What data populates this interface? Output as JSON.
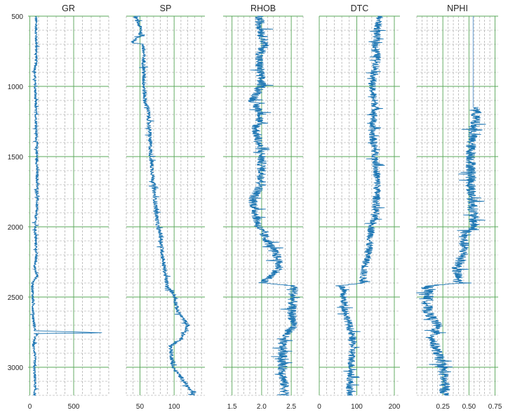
{
  "chart_data": {
    "type": "line",
    "layout": "well-log multi-track",
    "y_axis": {
      "label": "",
      "ticks": [
        500,
        1000,
        1500,
        2000,
        2500,
        3000
      ],
      "range": [
        500,
        3200
      ],
      "inverted": true
    },
    "grid": {
      "major_color": "#5aa85a",
      "minor_color": "#9a9a9a",
      "minor_style": "dashed"
    },
    "series_color": "#1f77b4",
    "tracks": [
      {
        "name": "GR",
        "title": "GR",
        "xlim": [
          -20,
          900
        ],
        "xticks": [
          0,
          500
        ],
        "xtick_labels": [
          "0",
          "500"
        ],
        "major_x": [
          0,
          500
        ],
        "minor_step": 100,
        "depth": [
          500,
          800,
          900,
          1200,
          1500,
          1800,
          2000,
          2200,
          2300,
          2350,
          2400,
          2650,
          2740,
          2755,
          2760,
          2800,
          2850,
          2900,
          3000,
          3100,
          3200
        ],
        "values": [
          70,
          75,
          55,
          70,
          80,
          85,
          60,
          75,
          55,
          85,
          30,
          40,
          60,
          850,
          80,
          50,
          40,
          60,
          50,
          60,
          55
        ],
        "noise": 15
      },
      {
        "name": "SP",
        "title": "SP",
        "xlim": [
          30,
          145
        ],
        "xticks": [
          50,
          100
        ],
        "xtick_labels": [
          "50",
          "100"
        ],
        "major_x": [
          50,
          100
        ],
        "minor_step": 10,
        "depth": [
          500,
          600,
          640,
          690,
          700,
          1000,
          1130,
          1150,
          1500,
          2000,
          2050,
          2200,
          2430,
          2480,
          2600,
          2700,
          2800,
          2850,
          3000,
          3100,
          3200
        ],
        "values": [
          43,
          52,
          50,
          38,
          55,
          56,
          58,
          62,
          66,
          76,
          80,
          83,
          90,
          100,
          105,
          120,
          110,
          95,
          98,
          115,
          128
        ],
        "noise": 3
      },
      {
        "name": "RHOB",
        "title": "RHOB",
        "xlim": [
          1.35,
          2.7
        ],
        "xticks": [
          1.5,
          2.0,
          2.5
        ],
        "xtick_labels": [
          "1.5",
          "2.0",
          "2.5"
        ],
        "major_x": [
          1.5,
          2.0,
          2.5
        ],
        "minor_step": 0.1,
        "depth": [
          500,
          700,
          800,
          1000,
          1100,
          1200,
          1300,
          1500,
          1700,
          1800,
          2000,
          2100,
          2200,
          2300,
          2400,
          2420,
          2600,
          2700,
          2800,
          3000,
          3200
        ],
        "values": [
          1.95,
          2.05,
          1.95,
          2.0,
          1.85,
          2.0,
          1.9,
          2.0,
          2.0,
          1.85,
          1.95,
          2.1,
          2.25,
          2.3,
          2.0,
          2.55,
          2.5,
          2.55,
          2.35,
          2.35,
          2.4
        ],
        "noise": 0.08
      },
      {
        "name": "DTC",
        "title": "DTC",
        "xlim": [
          0,
          215
        ],
        "xticks": [
          0,
          100,
          200
        ],
        "xtick_labels": [
          "0",
          "100",
          "200"
        ],
        "major_x": [
          0,
          100,
          200
        ],
        "minor_step": 20,
        "depth": [
          500,
          700,
          800,
          1000,
          1150,
          1300,
          1500,
          1700,
          1900,
          2000,
          2200,
          2300,
          2400,
          2420,
          2600,
          2700,
          2800,
          3000,
          3200
        ],
        "values": [
          160,
          150,
          155,
          140,
          150,
          140,
          150,
          155,
          150,
          140,
          130,
          120,
          115,
          60,
          70,
          80,
          90,
          85,
          80
        ],
        "noise": 10
      },
      {
        "name": "NPHI",
        "title": "NPHI",
        "xlim": [
          0.0,
          0.78
        ],
        "xticks": [
          0.25,
          0.5,
          0.75
        ],
        "xtick_labels": [
          "0.25",
          "0.50",
          "0.75"
        ],
        "major_x": [
          0.25,
          0.5,
          0.75
        ],
        "minor_step": 0.05,
        "start_depth": 1150,
        "depth": [
          1150,
          1400,
          1700,
          2000,
          2050,
          2200,
          2300,
          2400,
          2420,
          2600,
          2700,
          2800,
          3000,
          3200
        ],
        "values": [
          0.58,
          0.52,
          0.52,
          0.55,
          0.45,
          0.45,
          0.38,
          0.4,
          0.12,
          0.1,
          0.2,
          0.15,
          0.25,
          0.27
        ],
        "noise": 0.05,
        "reference_line": 0.54
      }
    ]
  }
}
